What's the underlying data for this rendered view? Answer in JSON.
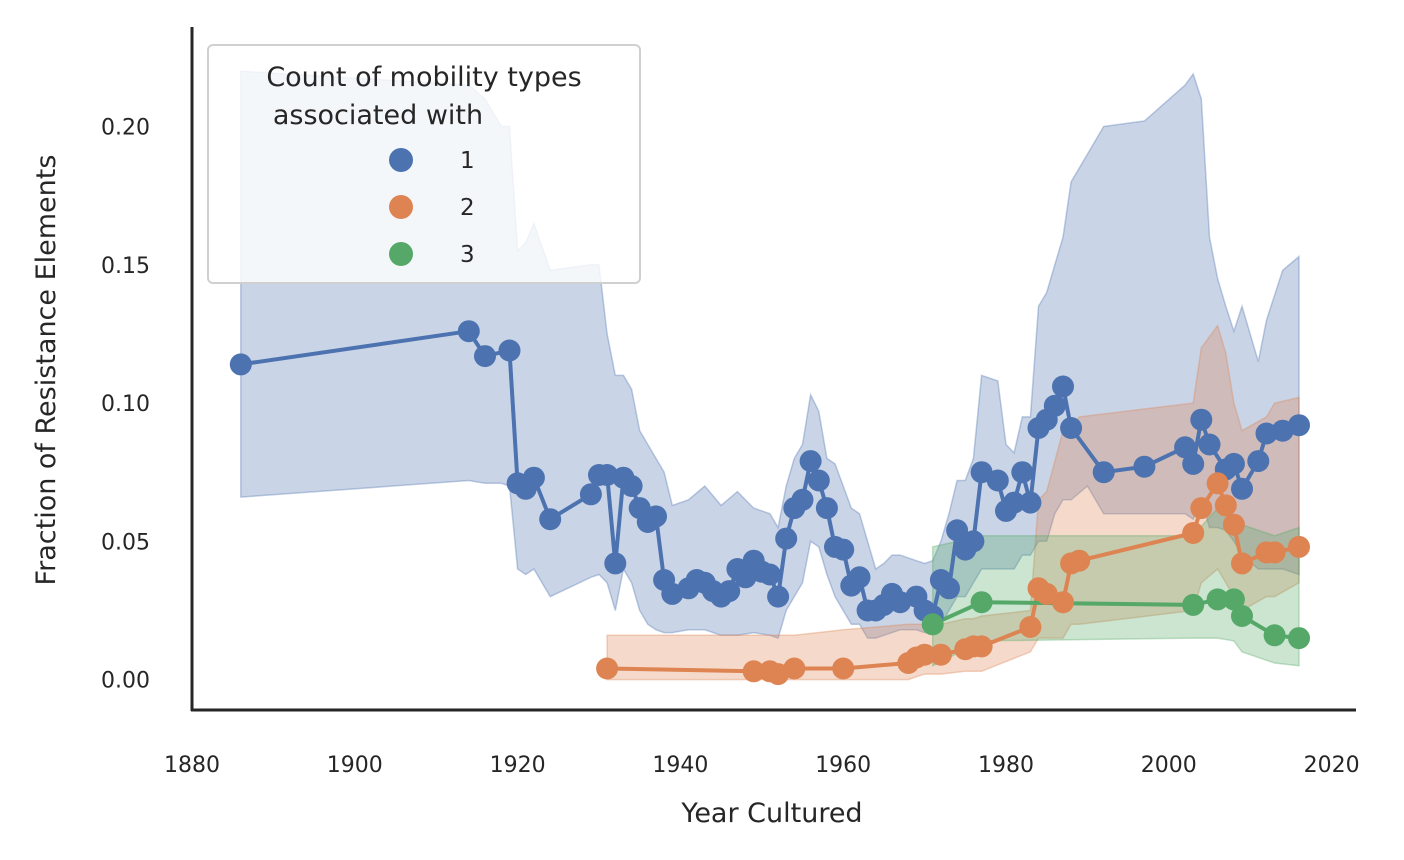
{
  "chart_data": {
    "type": "line",
    "title": "",
    "xlabel": "Year Cultured",
    "ylabel": "Fraction of Resistance Elements",
    "xlim": [
      1880,
      2023
    ],
    "ylim": [
      -0.011,
      0.236
    ],
    "x_ticks": [
      "1880",
      "1900",
      "1920",
      "1940",
      "1960",
      "1980",
      "2000",
      "2020"
    ],
    "y_ticks": [
      "0.00",
      "0.05",
      "0.10",
      "0.15",
      "0.20"
    ],
    "grid": false,
    "legend": {
      "title_lines": [
        "Count of mobility types",
        "associated with"
      ],
      "placement": "upper-left"
    },
    "series": [
      {
        "name": "1",
        "color": "#4c72b0",
        "points": [
          [
            1886,
            0.114
          ],
          [
            1914,
            0.126
          ],
          [
            1916,
            0.117
          ],
          [
            1919,
            0.119
          ],
          [
            1920,
            0.071
          ],
          [
            1921,
            0.069
          ],
          [
            1922,
            0.073
          ],
          [
            1924,
            0.058
          ],
          [
            1929,
            0.067
          ],
          [
            1930,
            0.074
          ],
          [
            1931,
            0.074
          ],
          [
            1932,
            0.042
          ],
          [
            1933,
            0.073
          ],
          [
            1934,
            0.07
          ],
          [
            1935,
            0.062
          ],
          [
            1936,
            0.057
          ],
          [
            1937,
            0.059
          ],
          [
            1938,
            0.036
          ],
          [
            1939,
            0.031
          ],
          [
            1941,
            0.033
          ],
          [
            1942,
            0.036
          ],
          [
            1943,
            0.035
          ],
          [
            1944,
            0.032
          ],
          [
            1945,
            0.03
          ],
          [
            1946,
            0.032
          ],
          [
            1947,
            0.04
          ],
          [
            1948,
            0.037
          ],
          [
            1949,
            0.043
          ],
          [
            1950,
            0.039
          ],
          [
            1951,
            0.038
          ],
          [
            1952,
            0.03
          ],
          [
            1953,
            0.051
          ],
          [
            1954,
            0.062
          ],
          [
            1955,
            0.065
          ],
          [
            1956,
            0.079
          ],
          [
            1957,
            0.072
          ],
          [
            1958,
            0.062
          ],
          [
            1959,
            0.048
          ],
          [
            1960,
            0.047
          ],
          [
            1961,
            0.034
          ],
          [
            1962,
            0.037
          ],
          [
            1963,
            0.025
          ],
          [
            1964,
            0.025
          ],
          [
            1965,
            0.027
          ],
          [
            1966,
            0.031
          ],
          [
            1967,
            0.028
          ],
          [
            1969,
            0.03
          ],
          [
            1970,
            0.025
          ],
          [
            1971,
            0.023
          ],
          [
            1972,
            0.036
          ],
          [
            1973,
            0.033
          ],
          [
            1974,
            0.054
          ],
          [
            1975,
            0.047
          ],
          [
            1976,
            0.05
          ],
          [
            1977,
            0.075
          ],
          [
            1979,
            0.072
          ],
          [
            1980,
            0.061
          ],
          [
            1981,
            0.064
          ],
          [
            1982,
            0.075
          ],
          [
            1983,
            0.064
          ],
          [
            1984,
            0.091
          ],
          [
            1985,
            0.094
          ],
          [
            1986,
            0.099
          ],
          [
            1987,
            0.106
          ],
          [
            1988,
            0.091
          ],
          [
            1992,
            0.075
          ],
          [
            1997,
            0.077
          ],
          [
            2002,
            0.084
          ],
          [
            2003,
            0.078
          ],
          [
            2004,
            0.094
          ],
          [
            2005,
            0.085
          ],
          [
            2007,
            0.076
          ],
          [
            2008,
            0.078
          ],
          [
            2009,
            0.069
          ],
          [
            2011,
            0.079
          ],
          [
            2012,
            0.089
          ],
          [
            2014,
            0.09
          ],
          [
            2016,
            0.092
          ]
        ],
        "ci_x": [
          1886,
          1914,
          1916,
          1918,
          1919,
          1920,
          1921,
          1922,
          1924,
          1929,
          1930,
          1931,
          1932,
          1933,
          1934,
          1935,
          1936,
          1937,
          1938,
          1939,
          1941,
          1943,
          1945,
          1947,
          1949,
          1951,
          1952,
          1953,
          1954,
          1955,
          1956,
          1957,
          1958,
          1959,
          1960,
          1961,
          1962,
          1963,
          1964,
          1965,
          1966,
          1967,
          1969,
          1970,
          1971,
          1972,
          1973,
          1974,
          1975,
          1976,
          1977,
          1979,
          1980,
          1981,
          1982,
          1983,
          1984,
          1985,
          1986,
          1987,
          1988,
          1990,
          1992,
          1997,
          2002,
          2003,
          2004,
          2005,
          2006,
          2007,
          2008,
          2009,
          2011,
          2012,
          2014,
          2016
        ],
        "ci_upper": [
          0.22,
          0.215,
          0.21,
          0.2,
          0.2,
          0.155,
          0.158,
          0.165,
          0.148,
          0.15,
          0.15,
          0.125,
          0.11,
          0.11,
          0.105,
          0.09,
          0.085,
          0.08,
          0.075,
          0.063,
          0.065,
          0.07,
          0.063,
          0.068,
          0.062,
          0.06,
          0.055,
          0.07,
          0.08,
          0.085,
          0.103,
          0.097,
          0.08,
          0.078,
          0.07,
          0.062,
          0.06,
          0.05,
          0.04,
          0.042,
          0.045,
          0.045,
          0.043,
          0.042,
          0.043,
          0.05,
          0.06,
          0.072,
          0.072,
          0.08,
          0.11,
          0.108,
          0.085,
          0.082,
          0.095,
          0.095,
          0.135,
          0.14,
          0.15,
          0.16,
          0.18,
          0.19,
          0.2,
          0.202,
          0.215,
          0.219,
          0.21,
          0.16,
          0.145,
          0.135,
          0.126,
          0.135,
          0.115,
          0.13,
          0.148,
          0.153
        ],
        "ci_lower": [
          0.066,
          0.072,
          0.071,
          0.071,
          0.07,
          0.04,
          0.038,
          0.04,
          0.03,
          0.037,
          0.038,
          0.035,
          0.025,
          0.04,
          0.035,
          0.025,
          0.02,
          0.018,
          0.017,
          0.017,
          0.018,
          0.018,
          0.016,
          0.016,
          0.017,
          0.016,
          0.015,
          0.025,
          0.03,
          0.035,
          0.05,
          0.048,
          0.038,
          0.03,
          0.025,
          0.02,
          0.02,
          0.015,
          0.015,
          0.016,
          0.017,
          0.018,
          0.018,
          0.017,
          0.017,
          0.02,
          0.025,
          0.03,
          0.03,
          0.035,
          0.04,
          0.04,
          0.04,
          0.04,
          0.045,
          0.045,
          0.05,
          0.05,
          0.06,
          0.065,
          0.065,
          0.07,
          0.06,
          0.06,
          0.06,
          0.058,
          0.065,
          0.055,
          0.055,
          0.054,
          0.05,
          0.045,
          0.04,
          0.04,
          0.04,
          0.038
        ]
      },
      {
        "name": "2",
        "color": "#dd8452",
        "points": [
          [
            1931,
            0.004
          ],
          [
            1949,
            0.003
          ],
          [
            1951,
            0.003
          ],
          [
            1952,
            0.002
          ],
          [
            1954,
            0.004
          ],
          [
            1960,
            0.004
          ],
          [
            1968,
            0.006
          ],
          [
            1969,
            0.008
          ],
          [
            1970,
            0.009
          ],
          [
            1972,
            0.009
          ],
          [
            1975,
            0.011
          ],
          [
            1976,
            0.012
          ],
          [
            1977,
            0.012
          ],
          [
            1983,
            0.019
          ],
          [
            1984,
            0.033
          ],
          [
            1985,
            0.031
          ],
          [
            1987,
            0.028
          ],
          [
            1988,
            0.042
          ],
          [
            1989,
            0.043
          ],
          [
            2003,
            0.053
          ],
          [
            2004,
            0.062
          ],
          [
            2006,
            0.071
          ],
          [
            2007,
            0.063
          ],
          [
            2008,
            0.056
          ],
          [
            2009,
            0.042
          ],
          [
            2012,
            0.046
          ],
          [
            2013,
            0.046
          ],
          [
            2016,
            0.048
          ]
        ],
        "ci_x": [
          1931,
          1949,
          1951,
          1952,
          1954,
          1960,
          1968,
          1969,
          1970,
          1972,
          1975,
          1976,
          1977,
          1983,
          1984,
          1985,
          1987,
          1988,
          1989,
          2003,
          2004,
          2006,
          2007,
          2008,
          2009,
          2012,
          2013,
          2016
        ],
        "ci_upper": [
          0.016,
          0.016,
          0.016,
          0.016,
          0.016,
          0.018,
          0.02,
          0.02,
          0.02,
          0.02,
          0.022,
          0.022,
          0.023,
          0.025,
          0.065,
          0.068,
          0.09,
          0.09,
          0.095,
          0.1,
          0.12,
          0.128,
          0.118,
          0.1,
          0.09,
          0.095,
          0.1,
          0.102
        ],
        "ci_lower": [
          0.0,
          0.0,
          0.0,
          0.0,
          0.0,
          0.0,
          0.0,
          0.001,
          0.002,
          0.002,
          0.003,
          0.003,
          0.003,
          0.01,
          0.015,
          0.015,
          0.015,
          0.02,
          0.02,
          0.025,
          0.035,
          0.04,
          0.035,
          0.03,
          0.025,
          0.03,
          0.03,
          0.035
        ]
      },
      {
        "name": "3",
        "color": "#55a868",
        "points": [
          [
            1971,
            0.02
          ],
          [
            1977,
            0.028
          ],
          [
            2003,
            0.027
          ],
          [
            2006,
            0.029
          ],
          [
            2008,
            0.029
          ],
          [
            2009,
            0.023
          ],
          [
            2013,
            0.016
          ],
          [
            2016,
            0.015
          ]
        ],
        "ci_x": [
          1971,
          1977,
          2003,
          2006,
          2008,
          2009,
          2013,
          2016
        ],
        "ci_upper": [
          0.048,
          0.052,
          0.052,
          0.062,
          0.058,
          0.056,
          0.052,
          0.055
        ],
        "ci_lower": [
          0.005,
          0.014,
          0.015,
          0.015,
          0.014,
          0.01,
          0.006,
          0.005
        ]
      }
    ]
  }
}
